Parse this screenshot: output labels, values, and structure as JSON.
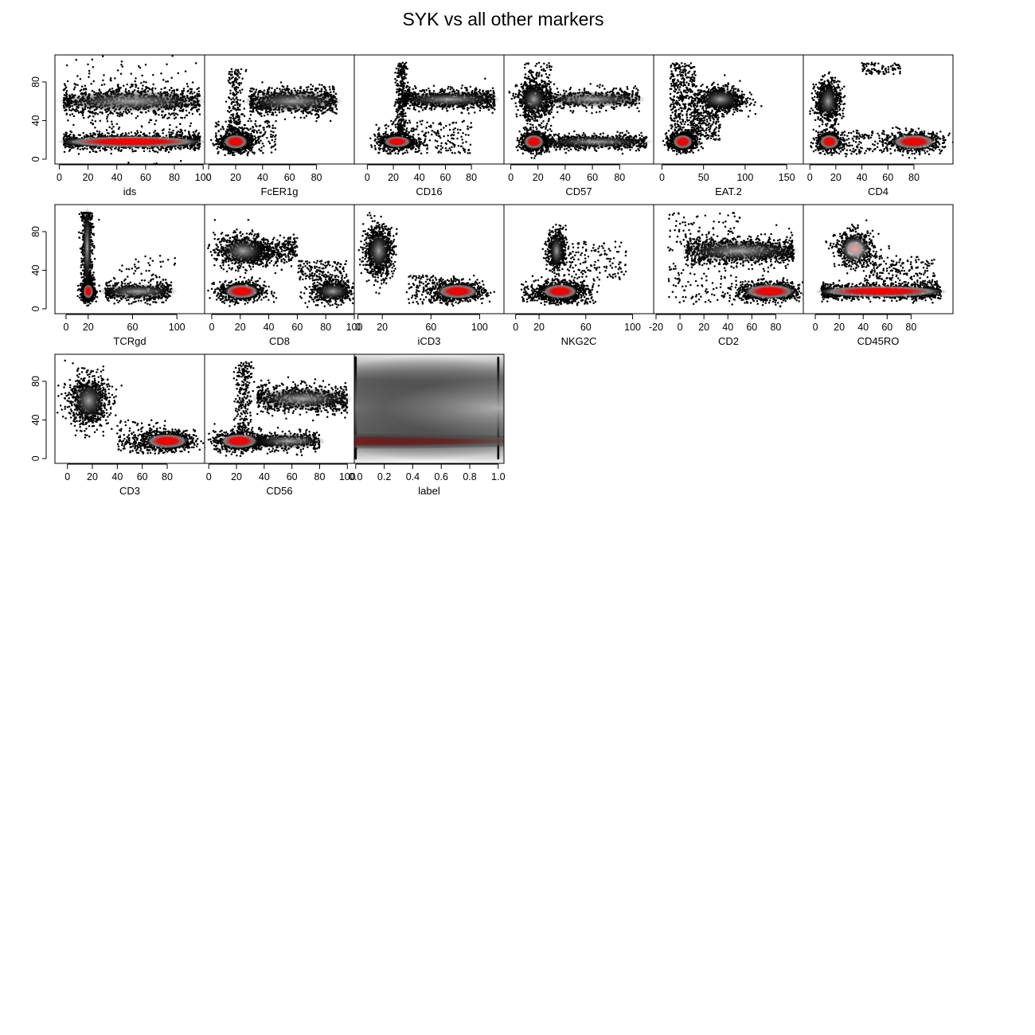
{
  "figure": {
    "title": "SYK vs all other markers",
    "palette": {
      "points": "#000000",
      "density_mid": "#8a8a8a",
      "density_peak": "#ff0000",
      "background": "#ffffff"
    }
  },
  "chart_data": [
    {
      "type": "scatter",
      "xlabel": "ids",
      "xticks": [
        0,
        20,
        40,
        60,
        80,
        100
      ],
      "xlim": [
        -3,
        101
      ],
      "yticks": [
        0,
        40,
        80
      ],
      "ylim": [
        -5,
        108
      ],
      "clusters": [
        {
          "x": [
            3,
            98
          ],
          "y": 18,
          "sx": 0,
          "sy": 4,
          "n": 1400,
          "red": 0.9
        },
        {
          "x": [
            3,
            98
          ],
          "y": 60,
          "sx": 0,
          "sy": 7,
          "n": 900,
          "red": 0
        },
        {
          "x": [
            3,
            98
          ],
          "y": 55,
          "sx": 0,
          "sy": 25,
          "n": 300,
          "red": 0
        }
      ]
    },
    {
      "type": "scatter",
      "xlabel": "FcER1g",
      "xticks": [
        0,
        20,
        40,
        60,
        80
      ],
      "xlim": [
        -3,
        108
      ],
      "yticks": [
        0,
        40,
        80
      ],
      "ylim": [
        -5,
        108
      ],
      "clusters": [
        {
          "x": 20,
          "y": 18,
          "sx": 6,
          "sy": 5,
          "n": 800,
          "red": 1
        },
        {
          "x": [
            30,
            95
          ],
          "y": 60,
          "sx": 0,
          "sy": 7,
          "n": 900,
          "red": 0
        },
        {
          "x": 20,
          "y": [
            20,
            95
          ],
          "sx": 3,
          "sy": 0,
          "n": 200,
          "red": 0
        },
        {
          "x": [
            5,
            50
          ],
          "y": [
            5,
            40
          ],
          "sx": 0,
          "sy": 0,
          "n": 200,
          "red": 0
        }
      ]
    },
    {
      "type": "scatter",
      "xlabel": "CD16",
      "xticks": [
        0,
        20,
        40,
        60,
        80
      ],
      "xlim": [
        -10,
        105
      ],
      "yticks": [
        0,
        40,
        80
      ],
      "ylim": [
        -5,
        108
      ],
      "clusters": [
        {
          "x": 23,
          "y": 18,
          "sx": 7,
          "sy": 4,
          "n": 800,
          "red": 1
        },
        {
          "x": [
            28,
            98
          ],
          "y": 62,
          "sx": 0,
          "sy": 5,
          "n": 900,
          "red": 0
        },
        {
          "x": 26,
          "y": [
            25,
            100
          ],
          "sx": 2,
          "sy": 0,
          "n": 300,
          "red": 0
        },
        {
          "x": [
            5,
            80
          ],
          "y": [
            5,
            40
          ],
          "sx": 0,
          "sy": 0,
          "n": 250,
          "red": 0
        }
      ]
    },
    {
      "type": "scatter",
      "xlabel": "CD57",
      "xticks": [
        0,
        20,
        40,
        60,
        80
      ],
      "xlim": [
        -5,
        105
      ],
      "yticks": [
        0,
        40,
        80
      ],
      "ylim": [
        -5,
        108
      ],
      "clusters": [
        {
          "x": 17,
          "y": 18,
          "sx": 5,
          "sy": 5,
          "n": 700,
          "red": 1
        },
        {
          "x": 17,
          "y": 62,
          "sx": 6,
          "sy": 9,
          "n": 600,
          "red": 0
        },
        {
          "x": [
            25,
            100
          ],
          "y": 18,
          "sx": 0,
          "sy": 4,
          "n": 700,
          "red": 0
        },
        {
          "x": [
            25,
            95
          ],
          "y": 62,
          "sx": 0,
          "sy": 5,
          "n": 500,
          "red": 0
        },
        {
          "x": [
            10,
            30
          ],
          "y": [
            25,
            100
          ],
          "sx": 0,
          "sy": 0,
          "n": 200,
          "red": 0
        }
      ]
    },
    {
      "type": "scatter",
      "xlabel": "EAT.2",
      "xticks": [
        0,
        50,
        100,
        150
      ],
      "xlim": [
        -10,
        170
      ],
      "yticks": [
        0,
        40,
        80
      ],
      "ylim": [
        -5,
        108
      ],
      "clusters": [
        {
          "x": 25,
          "y": 18,
          "sx": 8,
          "sy": 5,
          "n": 800,
          "red": 1
        },
        {
          "x": 70,
          "y": 62,
          "sx": 15,
          "sy": 7,
          "n": 800,
          "red": 0
        },
        {
          "x": [
            10,
            40
          ],
          "y": [
            30,
            100
          ],
          "sx": 0,
          "sy": 0,
          "n": 350,
          "red": 0
        },
        {
          "x": [
            35,
            70
          ],
          "y": [
            20,
            50
          ],
          "sx": 0,
          "sy": 0,
          "n": 200,
          "red": 0
        }
      ]
    },
    {
      "type": "scatter",
      "xlabel": "CD4",
      "xticks": [
        0,
        20,
        40,
        60,
        80
      ],
      "xlim": [
        -5,
        110
      ],
      "yticks": [
        0,
        40,
        80
      ],
      "ylim": [
        -5,
        108
      ],
      "clusters": [
        {
          "x": 15,
          "y": 18,
          "sx": 5,
          "sy": 5,
          "n": 600,
          "red": 1
        },
        {
          "x": 14,
          "y": 60,
          "sx": 5,
          "sy": 11,
          "n": 700,
          "red": 0
        },
        {
          "x": 80,
          "y": 18,
          "sx": 11,
          "sy": 5,
          "n": 700,
          "red": 0.9
        },
        {
          "x": [
            40,
            70
          ],
          "y": [
            88,
            100
          ],
          "sx": 0,
          "sy": 0,
          "n": 80,
          "red": 0
        },
        {
          "x": [
            20,
            60
          ],
          "y": [
            5,
            30
          ],
          "sx": 0,
          "sy": 0,
          "n": 120,
          "red": 0
        }
      ]
    },
    {
      "type": "scatter",
      "xlabel": "TCRgd",
      "xticks": [
        0,
        20,
        60,
        100
      ],
      "xlim": [
        -10,
        125
      ],
      "yticks": [
        0,
        40,
        80
      ],
      "ylim": [
        -5,
        108
      ],
      "clusters": [
        {
          "x": 20,
          "y": 18,
          "sx": 3,
          "sy": 5,
          "n": 800,
          "red": 1
        },
        {
          "x": 19,
          "y": [
            28,
            100
          ],
          "sx": 2.5,
          "sy": 0,
          "n": 600,
          "red": 0
        },
        {
          "x": [
            35,
            95
          ],
          "y": 18,
          "sx": 0,
          "sy": 5,
          "n": 500,
          "red": 0
        },
        {
          "x": [
            40,
            100
          ],
          "y": [
            30,
            55
          ],
          "sx": 0,
          "sy": 0,
          "n": 40,
          "red": 0
        }
      ]
    },
    {
      "type": "scatter",
      "xlabel": "CD8",
      "xticks": [
        0,
        20,
        40,
        60,
        80,
        100
      ],
      "xlim": [
        -5,
        100
      ],
      "yticks": [
        0,
        40,
        80
      ],
      "ylim": [
        -5,
        108
      ],
      "clusters": [
        {
          "x": 21,
          "y": 18,
          "sx": 8,
          "sy": 5,
          "n": 800,
          "red": 1
        },
        {
          "x": 22,
          "y": 60,
          "sx": 10,
          "sy": 9,
          "n": 700,
          "red": 0
        },
        {
          "x": 85,
          "y": 18,
          "sx": 8,
          "sy": 6,
          "n": 600,
          "red": 0
        },
        {
          "x": [
            30,
            60
          ],
          "y": 60,
          "sx": 0,
          "sy": 7,
          "n": 300,
          "red": 0
        },
        {
          "x": [
            60,
            95
          ],
          "y": [
            30,
            50
          ],
          "sx": 0,
          "sy": 0,
          "n": 150,
          "red": 0
        }
      ]
    },
    {
      "type": "scatter",
      "xlabel": "iCD3",
      "xticks": [
        0,
        20,
        60,
        100
      ],
      "xlim": [
        -3,
        120
      ],
      "yticks": [
        0,
        40,
        80
      ],
      "ylim": [
        -5,
        108
      ],
      "clusters": [
        {
          "x": 17,
          "y": 60,
          "sx": 6,
          "sy": 13,
          "n": 900,
          "red": 0
        },
        {
          "x": 82,
          "y": 18,
          "sx": 11,
          "sy": 5,
          "n": 800,
          "red": 1
        },
        {
          "x": [
            40,
            80
          ],
          "y": [
            5,
            35
          ],
          "sx": 0,
          "sy": 0,
          "n": 150,
          "red": 0
        }
      ]
    },
    {
      "type": "scatter",
      "xlabel": "NKG2C",
      "xticks": [
        0,
        20,
        60,
        100
      ],
      "xlim": [
        -10,
        118
      ],
      "yticks": [
        0,
        40,
        80
      ],
      "ylim": [
        -5,
        108
      ],
      "clusters": [
        {
          "x": 38,
          "y": 18,
          "sx": 10,
          "sy": 5,
          "n": 900,
          "red": 1
        },
        {
          "x": 35,
          "y": 60,
          "sx": 4,
          "sy": 11,
          "n": 500,
          "red": 0
        },
        {
          "x": [
            40,
            95
          ],
          "y": [
            30,
            70
          ],
          "sx": 0,
          "sy": 0,
          "n": 150,
          "red": 0
        },
        {
          "x": [
            5,
            70
          ],
          "y": [
            5,
            30
          ],
          "sx": 0,
          "sy": 0,
          "n": 200,
          "red": 0
        }
      ]
    },
    {
      "type": "scatter",
      "xlabel": "CD2",
      "xticks": [
        -20,
        0,
        20,
        40,
        60,
        80
      ],
      "xlim": [
        -22,
        103
      ],
      "yticks": [
        0,
        40,
        80
      ],
      "ylim": [
        -5,
        108
      ],
      "clusters": [
        {
          "x": [
            5,
            95
          ],
          "y": 60,
          "sx": 0,
          "sy": 7,
          "n": 1000,
          "red": 0
        },
        {
          "x": 75,
          "y": 18,
          "sx": 14,
          "sy": 5,
          "n": 900,
          "red": 1
        },
        {
          "x": [
            -10,
            50
          ],
          "y": [
            5,
            100
          ],
          "sx": 0,
          "sy": 0,
          "n": 200,
          "red": 0
        }
      ]
    },
    {
      "type": "scatter",
      "xlabel": "CD45RO",
      "xticks": [
        0,
        20,
        40,
        60,
        80
      ],
      "xlim": [
        -10,
        115
      ],
      "yticks": [
        0,
        40,
        80
      ],
      "ylim": [
        -5,
        108
      ],
      "clusters": [
        {
          "x": [
            5,
            105
          ],
          "y": 18,
          "sx": 0,
          "sy": 4,
          "n": 1300,
          "red": 1
        },
        {
          "x": 33,
          "y": 62,
          "sx": 8,
          "sy": 9,
          "n": 600,
          "red": 0.5
        },
        {
          "x": [
            40,
            100
          ],
          "y": [
            25,
            55
          ],
          "sx": 0,
          "sy": 0,
          "n": 200,
          "red": 0
        }
      ]
    },
    {
      "type": "scatter",
      "xlabel": "CD3",
      "xticks": [
        0,
        20,
        40,
        60,
        80
      ],
      "xlim": [
        -10,
        110
      ],
      "yticks": [
        0,
        40,
        80
      ],
      "ylim": [
        -5,
        108
      ],
      "clusters": [
        {
          "x": 17,
          "y": 60,
          "sx": 8,
          "sy": 13,
          "n": 900,
          "red": 0
        },
        {
          "x": 80,
          "y": 18,
          "sx": 11,
          "sy": 5,
          "n": 800,
          "red": 1
        },
        {
          "x": [
            40,
            80
          ],
          "y": [
            5,
            40
          ],
          "sx": 0,
          "sy": 0,
          "n": 150,
          "red": 0
        }
      ]
    },
    {
      "type": "scatter",
      "xlabel": "CD56",
      "xticks": [
        0,
        20,
        40,
        60,
        80,
        100
      ],
      "xlim": [
        -3,
        105
      ],
      "yticks": [
        0,
        40,
        80
      ],
      "ylim": [
        -5,
        108
      ],
      "clusters": [
        {
          "x": 22,
          "y": 18,
          "sx": 9,
          "sy": 5,
          "n": 800,
          "red": 1
        },
        {
          "x": [
            35,
            100
          ],
          "y": 62,
          "sx": 0,
          "sy": 7,
          "n": 800,
          "red": 0
        },
        {
          "x": [
            35,
            80
          ],
          "y": 18,
          "sx": 0,
          "sy": 5,
          "n": 400,
          "red": 0
        },
        {
          "x": 25,
          "y": [
            25,
            100
          ],
          "sx": 3,
          "sy": 0,
          "n": 250,
          "red": 0
        }
      ]
    },
    {
      "type": "scatter",
      "xlabel": "label",
      "xticks": [
        "0.0",
        "0.2",
        "0.4",
        "0.6",
        "0.8",
        "1.0"
      ],
      "xlim": [
        -0.01,
        1.04
      ],
      "yticks": [
        0,
        40,
        80
      ],
      "ylim": [
        -5,
        108
      ],
      "clusters": [
        {
          "x": 0,
          "y": 18,
          "sx": 0,
          "sy": 5,
          "n": 600,
          "red": 1
        },
        {
          "x": 0,
          "y": [
            0,
            105
          ],
          "sx": 0,
          "sy": 0,
          "n": 500,
          "red": 0
        },
        {
          "x": 1,
          "y": [
            0,
            105
          ],
          "sx": 0,
          "sy": 0,
          "n": 800,
          "red": 0
        }
      ]
    }
  ]
}
